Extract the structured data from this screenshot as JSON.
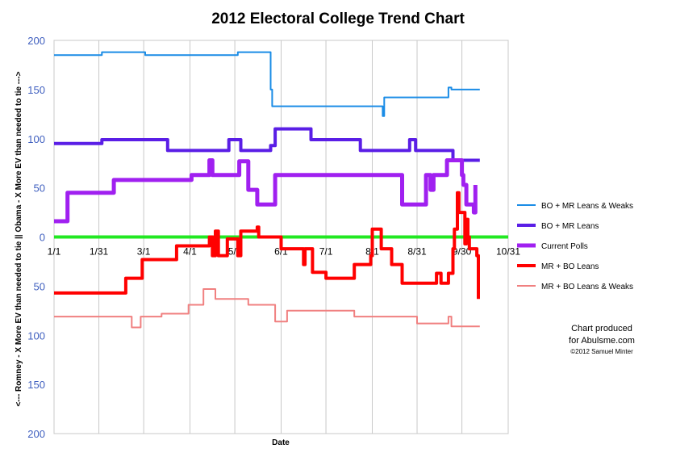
{
  "chart_data": {
    "type": "line",
    "title": "2012 Electoral College Trend Chart",
    "xlabel": "Date",
    "ylabel": "<--- Romney - X More EV than needed to tie  ||  Obama - X More EV than needed to tie --->",
    "x_tick_labels": [
      "1/1",
      "1/31",
      "3/1",
      "4/1",
      "5/1",
      "6/1",
      "7/1",
      "8/1",
      "8/31",
      "9/30",
      "10/31"
    ],
    "x_tick_days": [
      0,
      30,
      60,
      91,
      121,
      152,
      182,
      213,
      243,
      273,
      304
    ],
    "x_range_days": [
      0,
      304
    ],
    "y_tick_values": [
      200,
      150,
      100,
      50,
      0,
      -50,
      -100,
      -150,
      -200
    ],
    "y_tick_labels": [
      "200",
      "150",
      "100",
      "50",
      "0",
      "50",
      "100",
      "150",
      "200"
    ],
    "ylim": [
      -200,
      200
    ],
    "grid": "vertical",
    "legend_position": "right",
    "series": [
      {
        "name": "BO + MR Leans & Weaks",
        "color": "#1a8ce6",
        "width": 2,
        "points": [
          [
            0,
            185
          ],
          [
            32,
            185
          ],
          [
            32,
            188
          ],
          [
            61,
            188
          ],
          [
            61,
            185
          ],
          [
            123,
            185
          ],
          [
            123,
            188
          ],
          [
            145,
            188
          ],
          [
            145,
            150
          ],
          [
            146,
            150
          ],
          [
            146,
            133
          ],
          [
            220,
            133
          ],
          [
            220,
            123
          ],
          [
            221,
            123
          ],
          [
            221,
            142
          ],
          [
            264,
            142
          ],
          [
            264,
            152
          ],
          [
            266,
            152
          ],
          [
            266,
            150
          ],
          [
            285,
            150
          ]
        ]
      },
      {
        "name": "BO + MR Leans",
        "color": "#5a1ee6",
        "width": 4,
        "points": [
          [
            0,
            95
          ],
          [
            32,
            95
          ],
          [
            32,
            99
          ],
          [
            76,
            99
          ],
          [
            76,
            88
          ],
          [
            117,
            88
          ],
          [
            117,
            99
          ],
          [
            125,
            99
          ],
          [
            125,
            88
          ],
          [
            145,
            88
          ],
          [
            145,
            93
          ],
          [
            148,
            93
          ],
          [
            148,
            110
          ],
          [
            172,
            110
          ],
          [
            172,
            99
          ],
          [
            205,
            99
          ],
          [
            205,
            88
          ],
          [
            238,
            88
          ],
          [
            238,
            99
          ],
          [
            242,
            99
          ],
          [
            242,
            88
          ],
          [
            267,
            88
          ],
          [
            267,
            78
          ],
          [
            285,
            78
          ]
        ]
      },
      {
        "name": "Current Polls",
        "color": "#a020f0",
        "width": 5,
        "points": [
          [
            0,
            16
          ],
          [
            9,
            16
          ],
          [
            9,
            45
          ],
          [
            40,
            45
          ],
          [
            40,
            58
          ],
          [
            92,
            58
          ],
          [
            92,
            63
          ],
          [
            104,
            63
          ],
          [
            104,
            78
          ],
          [
            106,
            78
          ],
          [
            106,
            63
          ],
          [
            124,
            63
          ],
          [
            124,
            77
          ],
          [
            130,
            77
          ],
          [
            130,
            48
          ],
          [
            136,
            48
          ],
          [
            136,
            33
          ],
          [
            148,
            33
          ],
          [
            148,
            63
          ],
          [
            233,
            63
          ],
          [
            233,
            33
          ],
          [
            249,
            33
          ],
          [
            249,
            63
          ],
          [
            252,
            63
          ],
          [
            252,
            48
          ],
          [
            254,
            48
          ],
          [
            254,
            63
          ],
          [
            263,
            63
          ],
          [
            263,
            78
          ],
          [
            273,
            78
          ],
          [
            273,
            63
          ],
          [
            274,
            63
          ],
          [
            274,
            53
          ],
          [
            276,
            53
          ],
          [
            276,
            33
          ],
          [
            281,
            33
          ],
          [
            281,
            25
          ],
          [
            282,
            25
          ],
          [
            282,
            53
          ]
        ]
      },
      {
        "name": "MR + BO Leans",
        "color": "#ff0000",
        "width": 4,
        "points": [
          [
            0,
            -57
          ],
          [
            48,
            -57
          ],
          [
            48,
            -42
          ],
          [
            59,
            -42
          ],
          [
            59,
            -23
          ],
          [
            82,
            -23
          ],
          [
            82,
            -9
          ],
          [
            104,
            -9
          ],
          [
            104,
            0
          ],
          [
            106,
            0
          ],
          [
            106,
            -19
          ],
          [
            108,
            -19
          ],
          [
            108,
            6
          ],
          [
            110,
            6
          ],
          [
            110,
            -19
          ],
          [
            116,
            -19
          ],
          [
            116,
            -2
          ],
          [
            123,
            -2
          ],
          [
            123,
            -19
          ],
          [
            125,
            -19
          ],
          [
            125,
            6
          ],
          [
            136,
            6
          ],
          [
            136,
            10
          ],
          [
            137,
            10
          ],
          [
            137,
            0
          ],
          [
            152,
            0
          ],
          [
            152,
            -12
          ],
          [
            167,
            -12
          ],
          [
            167,
            -28
          ],
          [
            168,
            -28
          ],
          [
            168,
            -12
          ],
          [
            173,
            -12
          ],
          [
            173,
            -36
          ],
          [
            182,
            -36
          ],
          [
            182,
            -42
          ],
          [
            201,
            -42
          ],
          [
            201,
            -28
          ],
          [
            212,
            -28
          ],
          [
            212,
            -19
          ],
          [
            213,
            -19
          ],
          [
            213,
            8
          ],
          [
            219,
            8
          ],
          [
            219,
            -12
          ],
          [
            226,
            -12
          ],
          [
            226,
            -28
          ],
          [
            233,
            -28
          ],
          [
            233,
            -47
          ],
          [
            256,
            -47
          ],
          [
            256,
            -37
          ],
          [
            259,
            -37
          ],
          [
            259,
            -47
          ],
          [
            264,
            -47
          ],
          [
            264,
            -37
          ],
          [
            267,
            -37
          ],
          [
            267,
            -12
          ],
          [
            268,
            -12
          ],
          [
            268,
            8
          ],
          [
            270,
            8
          ],
          [
            270,
            45
          ],
          [
            271,
            45
          ],
          [
            271,
            25
          ],
          [
            275,
            25
          ],
          [
            275,
            -7
          ],
          [
            276,
            -7
          ],
          [
            276,
            18
          ],
          [
            277,
            18
          ],
          [
            277,
            0
          ],
          [
            278,
            0
          ],
          [
            278,
            -12
          ],
          [
            283,
            -12
          ],
          [
            283,
            -19
          ],
          [
            284,
            -19
          ],
          [
            284,
            -63
          ]
        ]
      },
      {
        "name": "MR + BO Leans & Weaks",
        "color": "#f08080",
        "width": 2,
        "points": [
          [
            0,
            -81
          ],
          [
            52,
            -81
          ],
          [
            52,
            -92
          ],
          [
            58,
            -92
          ],
          [
            58,
            -81
          ],
          [
            72,
            -81
          ],
          [
            72,
            -78
          ],
          [
            90,
            -78
          ],
          [
            90,
            -69
          ],
          [
            100,
            -69
          ],
          [
            100,
            -53
          ],
          [
            108,
            -53
          ],
          [
            108,
            -63
          ],
          [
            130,
            -63
          ],
          [
            130,
            -69
          ],
          [
            148,
            -69
          ],
          [
            148,
            -86
          ],
          [
            156,
            -86
          ],
          [
            156,
            -75
          ],
          [
            201,
            -75
          ],
          [
            201,
            -81
          ],
          [
            243,
            -81
          ],
          [
            243,
            -88
          ],
          [
            264,
            -88
          ],
          [
            264,
            -81
          ],
          [
            266,
            -81
          ],
          [
            266,
            -91
          ],
          [
            285,
            -91
          ]
        ]
      },
      {
        "name": "",
        "color": "#22e822",
        "width": 4,
        "legend": false,
        "points": [
          [
            0,
            0
          ],
          [
            304,
            0
          ]
        ]
      }
    ]
  },
  "credit": {
    "line1": "Chart produced",
    "line2": "for Abulsme.com",
    "line3": "©2012 Samuel Minter"
  }
}
